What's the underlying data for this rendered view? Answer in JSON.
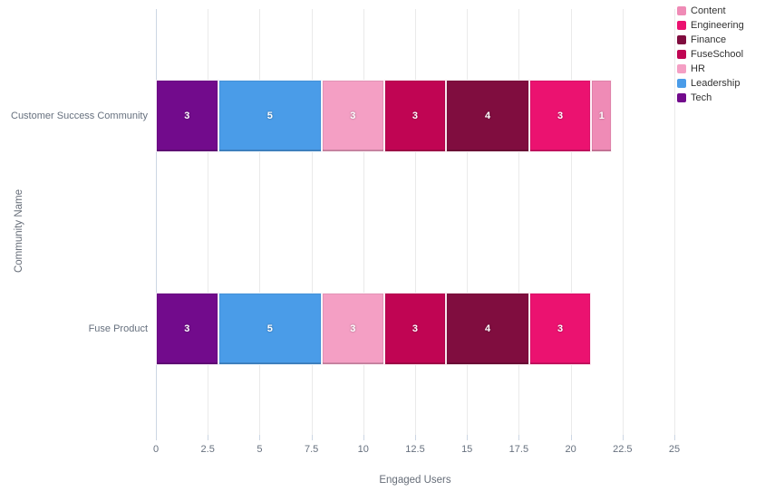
{
  "chart_data": {
    "type": "bar",
    "variant": "horizontal-stacked",
    "title": "",
    "xlabel": "Engaged Users",
    "ylabel": "Community Name",
    "xlim": [
      0,
      25
    ],
    "xticks": [
      0,
      2.5,
      5,
      7.5,
      10,
      12.5,
      15,
      17.5,
      20,
      22.5,
      25
    ],
    "xtick_labels": [
      "0",
      "2.5",
      "5",
      "7.5",
      "10",
      "12.5",
      "15",
      "17.5",
      "20",
      "22.5",
      "25"
    ],
    "grid": "vertical-on",
    "legend_position": "top-right",
    "categories": [
      "Customer Success Community",
      "Fuse Product"
    ],
    "stack_order_left_to_right": [
      "Tech",
      "Leadership",
      "HR",
      "FuseSchool",
      "Finance",
      "Engineering",
      "Content"
    ],
    "series": [
      {
        "name": "Content",
        "color": "#EF8BB6",
        "values": [
          1,
          0
        ]
      },
      {
        "name": "Engineering",
        "color": "#EB1270",
        "values": [
          3,
          3
        ]
      },
      {
        "name": "Finance",
        "color": "#800D3F",
        "values": [
          4,
          4
        ]
      },
      {
        "name": "FuseSchool",
        "color": "#C00553",
        "values": [
          3,
          3
        ]
      },
      {
        "name": "HR",
        "color": "#F49FC4",
        "values": [
          3,
          3
        ]
      },
      {
        "name": "Leadership",
        "color": "#4A9CE8",
        "values": [
          5,
          5
        ]
      },
      {
        "name": "Tech",
        "color": "#720B8C",
        "values": [
          3,
          3
        ]
      }
    ],
    "stack_totals": [
      22,
      21
    ]
  },
  "colors": {
    "background": "#ffffff",
    "gridline": "#eaeaea",
    "axis_line": "#ccd6e3",
    "tick_label": "#66707e",
    "axis_title": "#666d78",
    "legend_label": "#333333",
    "data_label": "#ffffff"
  }
}
